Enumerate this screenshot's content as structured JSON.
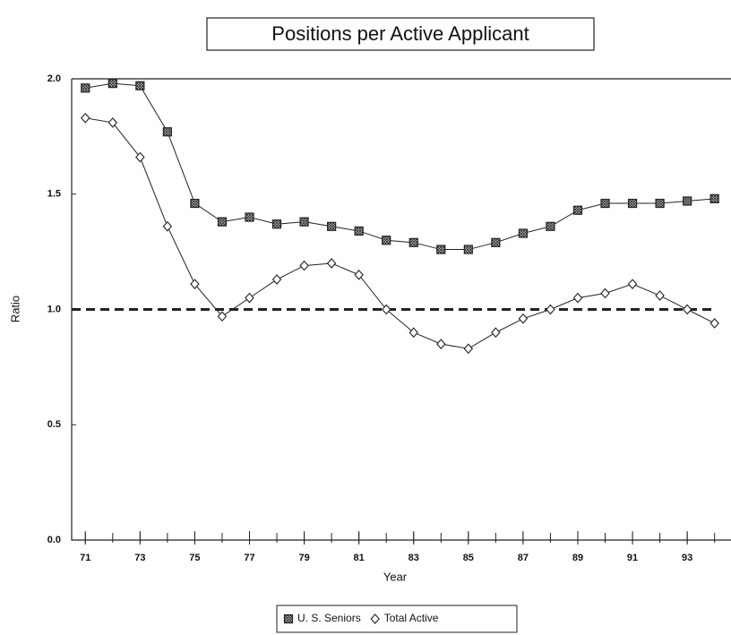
{
  "chart_data": {
    "type": "line",
    "title": "Positions per Active Applicant",
    "x_label": "Year",
    "y_label": "Ratio",
    "x": [
      71,
      72,
      73,
      74,
      75,
      76,
      77,
      78,
      79,
      80,
      81,
      82,
      83,
      84,
      85,
      86,
      87,
      88,
      89,
      90,
      91,
      92,
      93,
      94
    ],
    "series": [
      {
        "name": "U. S. Seniors",
        "color": "#222222",
        "marker": "square",
        "values": [
          1.96,
          1.98,
          1.97,
          1.77,
          1.46,
          1.38,
          1.4,
          1.37,
          1.38,
          1.36,
          1.34,
          1.3,
          1.29,
          1.26,
          1.26,
          1.29,
          1.33,
          1.36,
          1.43,
          1.46,
          1.46,
          1.46,
          1.47,
          1.48
        ]
      },
      {
        "name": "Total Active",
        "color": "#222222",
        "marker": "diamond",
        "values": [
          1.83,
          1.81,
          1.66,
          1.36,
          1.11,
          0.97,
          1.05,
          1.13,
          1.19,
          1.2,
          1.15,
          1.0,
          0.9,
          0.85,
          0.83,
          0.9,
          0.96,
          1.0,
          1.05,
          1.07,
          1.11,
          1.06,
          1.0,
          0.94
        ]
      }
    ],
    "reference_line": 1,
    "xlim": [
      70.5,
      94.6
    ],
    "ylim": [
      0,
      2
    ],
    "xticks": [
      71,
      73,
      75,
      77,
      79,
      81,
      83,
      85,
      87,
      89,
      91,
      93
    ],
    "yticks": [
      {
        "value": 0,
        "label": "0.0"
      },
      {
        "value": 0.5,
        "label": "0.5"
      },
      {
        "value": 1,
        "label": "1.0"
      },
      {
        "value": 1.5,
        "label": "1.5"
      },
      {
        "value": 2,
        "label": "2.0"
      }
    ],
    "legend": "bottom"
  }
}
